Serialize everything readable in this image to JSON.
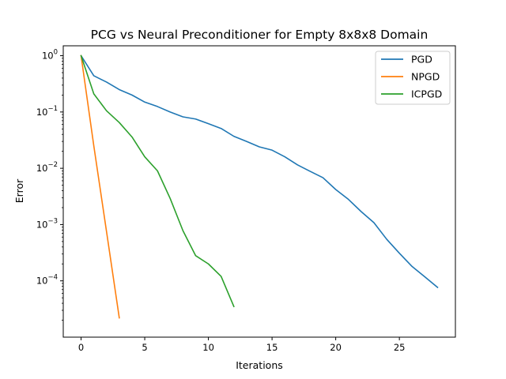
{
  "chart_data": {
    "type": "line",
    "title": "PCG vs Neural Preconditioner for Empty 8x8x8 Domain",
    "xlabel": "Iterations",
    "ylabel": "Error",
    "xlim": [
      -1.4,
      29.4
    ],
    "ylim": [
      1e-05,
      1.5
    ],
    "yscale": "log",
    "x_ticks": [
      0,
      5,
      10,
      15,
      20,
      25
    ],
    "y_ticks": [
      {
        "value": 1,
        "base": "10",
        "exp": "0"
      },
      {
        "value": 0.1,
        "base": "10",
        "exp": "−1"
      },
      {
        "value": 0.01,
        "base": "10",
        "exp": "−2"
      },
      {
        "value": 0.001,
        "base": "10",
        "exp": "−3"
      },
      {
        "value": 0.0001,
        "base": "10",
        "exp": "−4"
      }
    ],
    "grid": false,
    "legend_position": "top-right",
    "series": [
      {
        "name": "PGD",
        "color": "#1f77b4",
        "x": [
          0,
          1,
          2,
          3,
          4,
          5,
          6,
          7,
          8,
          9,
          10,
          11,
          12,
          13,
          14,
          15,
          16,
          17,
          18,
          19,
          20,
          21,
          22,
          23,
          24,
          25,
          26,
          27,
          28
        ],
        "y": [
          1.0,
          0.44,
          0.34,
          0.25,
          0.2,
          0.15,
          0.125,
          0.1,
          0.082,
          0.075,
          0.062,
          0.051,
          0.037,
          0.03,
          0.024,
          0.021,
          0.016,
          0.0115,
          0.0088,
          0.0068,
          0.0042,
          0.0028,
          0.0017,
          0.00108,
          0.00055,
          0.00031,
          0.00018,
          0.000118,
          7.65e-05
        ]
      },
      {
        "name": "NPGD",
        "color": "#ff7f0e",
        "x": [
          0,
          1,
          2,
          3
        ],
        "y": [
          1.0,
          0.025,
          0.00075,
          2.2e-05
        ]
      },
      {
        "name": "ICPGD",
        "color": "#2ca02c",
        "x": [
          0,
          1,
          2,
          3,
          4,
          5,
          6,
          7,
          8,
          9,
          10,
          11,
          12
        ],
        "y": [
          1.0,
          0.21,
          0.105,
          0.065,
          0.036,
          0.016,
          0.009,
          0.0029,
          0.00078,
          0.00028,
          0.0002,
          0.00012,
          3.5e-05
        ]
      }
    ]
  }
}
